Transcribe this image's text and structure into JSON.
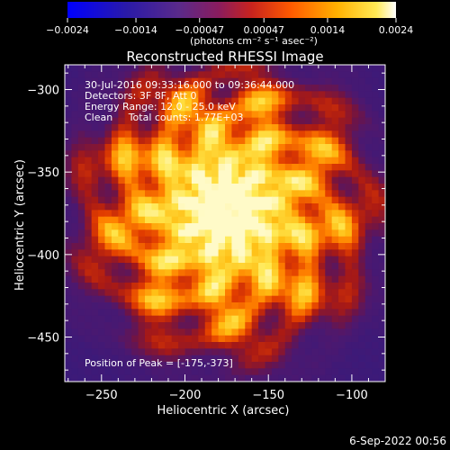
{
  "colorbar": {
    "ticks": [
      "-0.0024",
      "-0.0014",
      "-0.00047",
      "0.00047",
      "0.0014",
      "0.0024"
    ],
    "units": "(photons cm⁻² s⁻¹ asec⁻²)",
    "range": [
      -0.0024,
      0.0024
    ]
  },
  "chart_data": {
    "type": "heatmap",
    "title": "Reconstructed RHESSI Image",
    "xlabel": "Heliocentric X (arcsec)",
    "ylabel": "Heliocentric Y (arcsec)",
    "xlim": [
      -272,
      -80
    ],
    "ylim": [
      -477,
      -285
    ],
    "xticks": [
      -250,
      -200,
      -150,
      -100
    ],
    "yticks": [
      -300,
      -350,
      -400,
      -450
    ],
    "xtick_labels": [
      "−250",
      "−200",
      "−150",
      "−100"
    ],
    "ytick_labels": [
      "−300",
      "−350",
      "−400",
      "−450"
    ],
    "peak": [
      -175,
      -373
    ],
    "annotations": [
      "30-Jul-2016 09:33:16.000 to 09:36:44.000",
      "Detectors: 3F 8F, Att 0",
      "Energy Range: 12.0 - 25.0 keV",
      "Clean     Total counts: 1.77E+03"
    ],
    "peak_label": "Position of Peak = [-175,-373]"
  },
  "footer": {
    "date": "6-Sep-2022 00:56"
  },
  "colors": {
    "background": "#000000",
    "foreground": "#ffffff"
  }
}
